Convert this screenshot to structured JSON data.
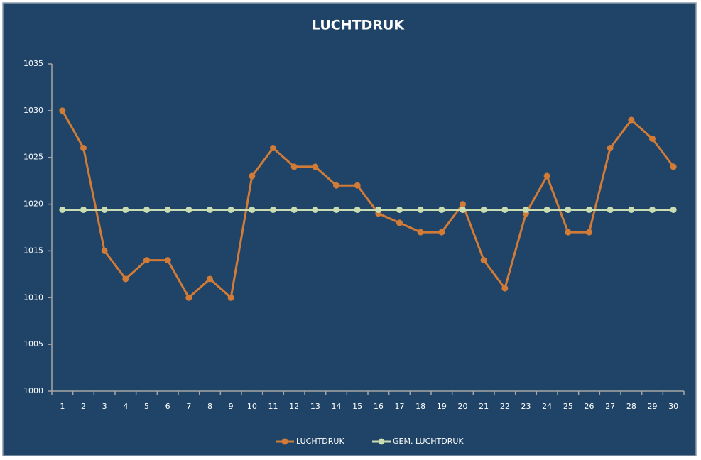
{
  "chart_data": {
    "type": "line",
    "title": "LUCHTDRUK",
    "categories": [
      "1",
      "2",
      "3",
      "4",
      "5",
      "6",
      "7",
      "8",
      "9",
      "10",
      "11",
      "12",
      "13",
      "14",
      "15",
      "16",
      "17",
      "18",
      "19",
      "20",
      "21",
      "22",
      "23",
      "24",
      "25",
      "26",
      "27",
      "28",
      "29",
      "30"
    ],
    "series": [
      {
        "name": "LUCHTDRUK",
        "color": "#d17b37",
        "values": [
          1030,
          1026,
          1015,
          1012,
          1014,
          1014,
          1010,
          1012,
          1010,
          1023,
          1026,
          1024,
          1024,
          1022,
          1022,
          1019,
          1018,
          1017,
          1017,
          1020,
          1014,
          1011,
          1019,
          1023,
          1017,
          1017,
          1026,
          1029,
          1027,
          1024
        ]
      },
      {
        "name": "GEM. LUCHTDRUK",
        "color": "#c9dcb2",
        "values": [
          1019.4,
          1019.4,
          1019.4,
          1019.4,
          1019.4,
          1019.4,
          1019.4,
          1019.4,
          1019.4,
          1019.4,
          1019.4,
          1019.4,
          1019.4,
          1019.4,
          1019.4,
          1019.4,
          1019.4,
          1019.4,
          1019.4,
          1019.4,
          1019.4,
          1019.4,
          1019.4,
          1019.4,
          1019.4,
          1019.4,
          1019.4,
          1019.4,
          1019.4,
          1019.4
        ]
      }
    ],
    "ylim": [
      1000,
      1035
    ],
    "yticks": [
      1000,
      1005,
      1010,
      1015,
      1020,
      1025,
      1030,
      1035
    ],
    "grid": false
  }
}
